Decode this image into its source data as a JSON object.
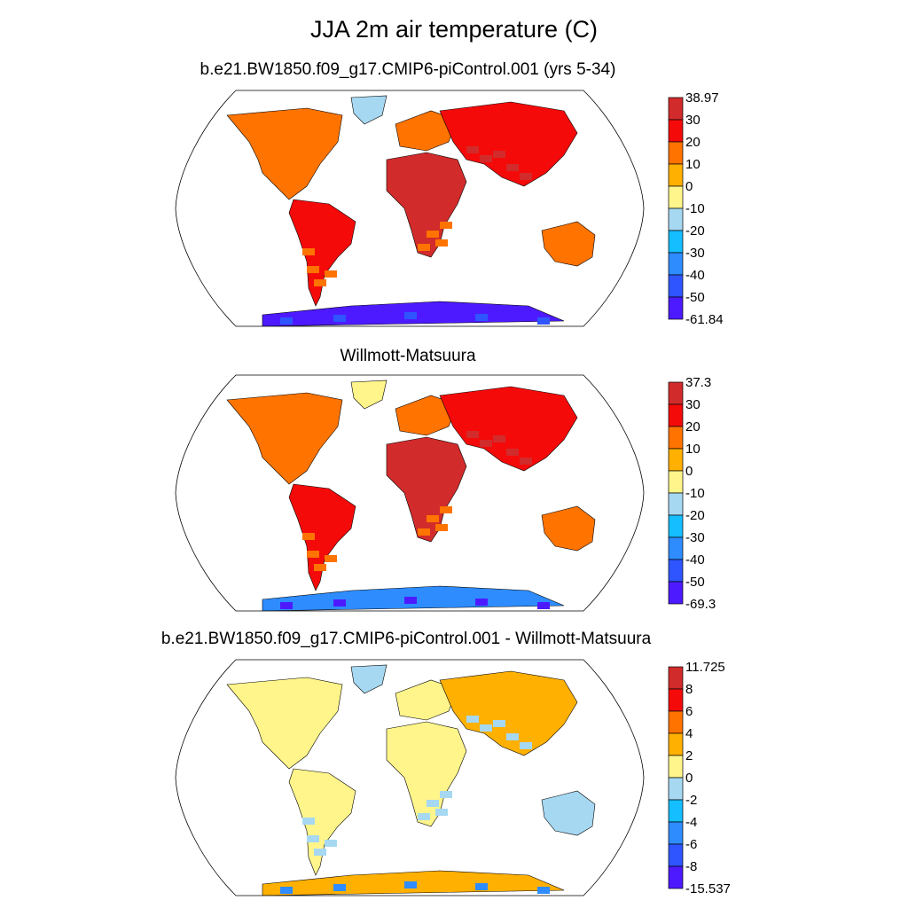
{
  "title": "JJA 2m air temperature (C)",
  "panels": [
    {
      "id": "model",
      "subtitle": "b.e21.BW1850.f09_g17.CMIP6-piControl.001 (yrs 5-34)",
      "colorbar": {
        "labels": [
          "38.97",
          "30",
          "20",
          "10",
          "0",
          "-10",
          "-20",
          "-30",
          "-40",
          "-50",
          "-61.84"
        ],
        "colors": [
          "#d22b2b",
          "#f50a0a",
          "#ff7300",
          "#ffb000",
          "#fff58a",
          "#a6d8f2",
          "#14beff",
          "#2e8cff",
          "#2e55ff",
          "#4d1aff"
        ]
      }
    },
    {
      "id": "observations",
      "subtitle": "Willmott-Matsuura",
      "colorbar": {
        "labels": [
          "37.3",
          "30",
          "20",
          "10",
          "0",
          "-10",
          "-20",
          "-30",
          "-40",
          "-50",
          "-69.3"
        ],
        "colors": [
          "#d22b2b",
          "#f50a0a",
          "#ff7300",
          "#ffb000",
          "#fff58a",
          "#a6d8f2",
          "#14beff",
          "#2e8cff",
          "#2e55ff",
          "#4d1aff"
        ]
      }
    },
    {
      "id": "difference",
      "subtitle": "b.e21.BW1850.f09_g17.CMIP6-piControl.001 - Willmott-Matsuura",
      "colorbar": {
        "labels": [
          "11.725",
          "8",
          "6",
          "4",
          "2",
          "0",
          "-2",
          "-4",
          "-6",
          "-8",
          "-15.537"
        ],
        "colors": [
          "#d22b2b",
          "#f50a0a",
          "#ff7300",
          "#ffb000",
          "#fff58a",
          "#a6d8f2",
          "#14beff",
          "#2e8cff",
          "#2e55ff",
          "#4d1aff"
        ]
      }
    }
  ]
}
